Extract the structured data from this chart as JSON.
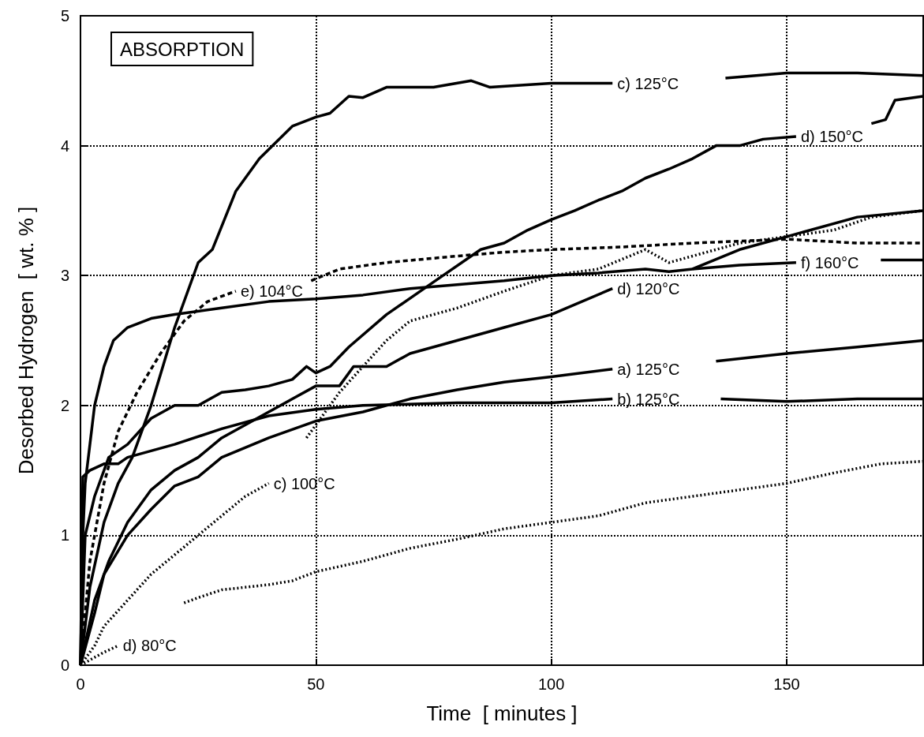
{
  "chart_data": {
    "type": "line",
    "xlabel": "Time  [ minutes ]",
    "ylabel": "Desorbed Hydrogen  [ wt. % ]",
    "annotations": [
      "ABSORPTION"
    ],
    "xlim": [
      0,
      179
    ],
    "xticks": [
      0,
      50,
      100,
      150
    ],
    "ylim": [
      0,
      5
    ],
    "yticks": [
      0,
      1,
      2,
      3,
      4,
      5
    ],
    "grid": true,
    "legend": false,
    "marker": "none",
    "series": [
      {
        "name": "c) 125°C",
        "color": "#000000",
        "line_style": "solid",
        "x": [
          0,
          2,
          5,
          8,
          11,
          15,
          20,
          25,
          28,
          33,
          38,
          45,
          50,
          53,
          57,
          60,
          65,
          75,
          83,
          87,
          100,
          113,
          125,
          137,
          150,
          165,
          179
        ],
        "values": [
          0,
          0.6,
          1.1,
          1.4,
          1.6,
          2.0,
          2.6,
          3.1,
          3.2,
          3.65,
          3.9,
          4.15,
          4.22,
          4.25,
          4.38,
          4.37,
          4.45,
          4.45,
          4.5,
          4.45,
          4.48,
          4.48,
          null,
          4.52,
          4.56,
          4.56,
          4.54
        ]
      },
      {
        "name": "d) 150°C",
        "color": "#000000",
        "line_style": "solid",
        "x": [
          0,
          1,
          3,
          6,
          10,
          15,
          20,
          25,
          30,
          35,
          40,
          45,
          48,
          50,
          53,
          57,
          65,
          75,
          85,
          90,
          95,
          100,
          105,
          110,
          115,
          120,
          125,
          130,
          135,
          140,
          145,
          152,
          160,
          168,
          171,
          173,
          179
        ],
        "values": [
          0,
          1.0,
          1.3,
          1.6,
          1.7,
          1.9,
          2.0,
          2.0,
          2.1,
          2.12,
          2.15,
          2.2,
          2.3,
          2.25,
          2.3,
          2.45,
          2.7,
          2.95,
          3.2,
          3.25,
          3.35,
          3.43,
          3.5,
          3.58,
          3.65,
          3.75,
          3.82,
          3.9,
          4.0,
          4.0,
          4.05,
          4.07,
          null,
          4.17,
          4.2,
          4.35,
          4.38
        ]
      },
      {
        "name": "e) 104°C",
        "color": "#000000",
        "line_style": "dashed",
        "x": [
          0,
          2,
          5,
          8,
          12,
          17,
          22,
          27,
          33,
          40,
          49,
          55,
          65,
          80,
          90,
          100,
          115,
          130,
          150,
          165,
          179
        ],
        "values": [
          0,
          0.8,
          1.4,
          1.8,
          2.1,
          2.4,
          2.65,
          2.8,
          2.88,
          null,
          2.96,
          3.05,
          3.1,
          3.15,
          3.18,
          3.2,
          3.22,
          3.25,
          3.28,
          3.25,
          3.25
        ]
      },
      {
        "name": "f) 160°C",
        "color": "#000000",
        "line_style": "solid",
        "x": [
          0,
          0.5,
          1,
          2,
          3,
          5,
          7,
          10,
          15,
          20,
          30,
          40,
          50,
          60,
          70,
          80,
          90,
          100,
          110,
          120,
          125,
          130,
          140,
          152,
          160,
          170,
          179
        ],
        "values": [
          0,
          1.0,
          1.4,
          1.7,
          2.0,
          2.3,
          2.5,
          2.6,
          2.67,
          2.7,
          2.75,
          2.8,
          2.82,
          2.85,
          2.9,
          2.93,
          2.96,
          3.0,
          3.02,
          3.05,
          3.03,
          3.05,
          3.08,
          3.1,
          null,
          3.12,
          3.12
        ]
      },
      {
        "name": "d) 120°C",
        "color": "#000000",
        "line_style": "solid",
        "x": [
          0,
          3,
          6,
          10,
          15,
          20,
          25,
          30,
          35,
          40,
          45,
          50,
          55,
          58,
          65,
          70,
          80,
          90,
          100,
          113,
          120,
          130,
          140,
          150,
          165,
          179
        ],
        "values": [
          0,
          0.5,
          0.8,
          1.1,
          1.35,
          1.5,
          1.6,
          1.75,
          1.85,
          1.95,
          2.05,
          2.15,
          2.15,
          2.3,
          2.3,
          2.4,
          2.5,
          2.6,
          2.7,
          2.9,
          null,
          3.05,
          3.2,
          3.3,
          3.45,
          3.5
        ]
      },
      {
        "name": "a) 125°C",
        "color": "#000000",
        "line_style": "solid",
        "x": [
          0,
          3,
          5,
          10,
          15,
          20,
          25,
          30,
          40,
          50,
          60,
          70,
          80,
          90,
          100,
          113,
          125,
          135,
          150,
          165,
          179
        ],
        "values": [
          0,
          0.4,
          0.7,
          1.0,
          1.2,
          1.38,
          1.45,
          1.6,
          1.75,
          1.88,
          1.95,
          2.05,
          2.12,
          2.18,
          2.22,
          2.28,
          null,
          2.34,
          2.4,
          2.45,
          2.5
        ]
      },
      {
        "name": "b) 125°C",
        "color": "#000000",
        "line_style": "solid",
        "x": [
          0,
          0.5,
          2,
          5,
          8,
          10,
          20,
          30,
          40,
          50,
          60,
          80,
          100,
          113,
          125,
          136,
          150,
          165,
          179
        ],
        "values": [
          0,
          1.45,
          1.5,
          1.55,
          1.55,
          1.6,
          1.7,
          1.82,
          1.92,
          1.97,
          2.0,
          2.02,
          2.02,
          2.05,
          null,
          2.05,
          2.03,
          2.05,
          2.05
        ]
      },
      {
        "name": "c) 100°C",
        "color": "#000000",
        "line_style": "dotted",
        "x": [
          0,
          3,
          5,
          10,
          15,
          20,
          25,
          30,
          35,
          40,
          44,
          48,
          50,
          55,
          60,
          65,
          70,
          80,
          90,
          100,
          110,
          120,
          125,
          130,
          140,
          150,
          160,
          168,
          179
        ],
        "values": [
          0,
          0.15,
          0.3,
          0.5,
          0.7,
          0.85,
          1.0,
          1.15,
          1.3,
          1.4,
          null,
          1.75,
          1.85,
          2.1,
          2.3,
          2.5,
          2.65,
          2.75,
          2.88,
          3.0,
          3.05,
          3.2,
          3.1,
          3.15,
          3.25,
          3.3,
          3.35,
          3.45,
          3.5
        ]
      },
      {
        "name": "d) 80°C",
        "color": "#000000",
        "line_style": "dotted",
        "x": [
          0,
          5,
          8,
          15,
          22,
          25,
          30,
          40,
          45,
          50,
          60,
          70,
          80,
          90,
          100,
          110,
          120,
          130,
          140,
          150,
          160,
          170,
          179
        ],
        "values": [
          0,
          0.1,
          0.15,
          null,
          0.48,
          0.52,
          0.58,
          0.62,
          0.65,
          0.72,
          0.8,
          0.9,
          0.97,
          1.05,
          1.1,
          1.15,
          1.25,
          1.3,
          1.35,
          1.4,
          1.48,
          1.55,
          1.57
        ]
      }
    ]
  }
}
